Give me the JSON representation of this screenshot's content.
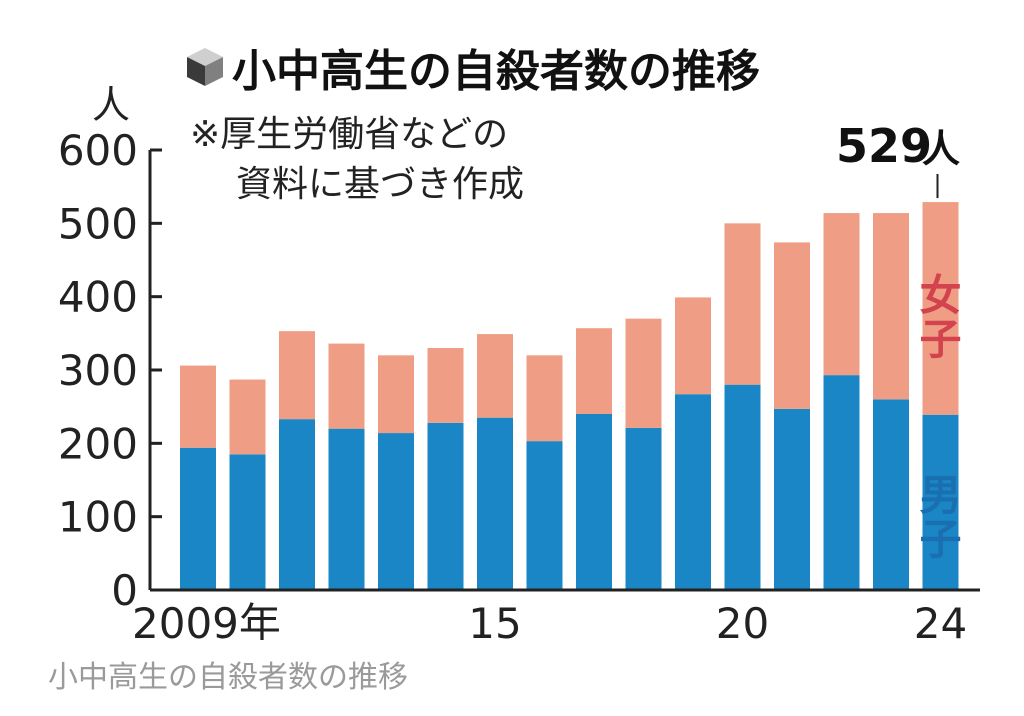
{
  "chart_data": {
    "type": "bar",
    "stacked": true,
    "title": "小中高生の自殺者数の推移",
    "subtitle_lines": [
      "※厚生労働省などの",
      "資料に基づき作成"
    ],
    "ylabel": "人",
    "ylim": [
      0,
      600
    ],
    "yticks": [
      0,
      100,
      200,
      300,
      400,
      500,
      600
    ],
    "x": [
      2009,
      2010,
      2011,
      2012,
      2013,
      2014,
      2015,
      2016,
      2017,
      2018,
      2019,
      2020,
      2021,
      2022,
      2023,
      2024
    ],
    "xtick_labels": [
      {
        "year": 2009,
        "label": "2009年"
      },
      {
        "year": 2015,
        "label": "15"
      },
      {
        "year": 2020,
        "label": "20"
      },
      {
        "year": 2024,
        "label": "24"
      }
    ],
    "series": [
      {
        "name": "男子",
        "color": "#1a86c6",
        "values": [
          194,
          185,
          233,
          220,
          214,
          228,
          235,
          203,
          240,
          221,
          267,
          280,
          247,
          293,
          260,
          239
        ]
      },
      {
        "name": "女子",
        "color": "#ef9e85",
        "values": [
          112,
          102,
          120,
          116,
          106,
          102,
          114,
          117,
          117,
          149,
          132,
          220,
          227,
          221,
          254,
          290
        ]
      }
    ],
    "annotation": {
      "value": "529",
      "unit": "人"
    },
    "grid": false
  },
  "caption": "小中高生の自殺者数の推移",
  "colors": {
    "axis": "#222222",
    "female_label": "#d2434e",
    "male_label": "#1a6fb0",
    "title_icon": "#555555"
  },
  "icons": {
    "title": "cube-icon"
  }
}
